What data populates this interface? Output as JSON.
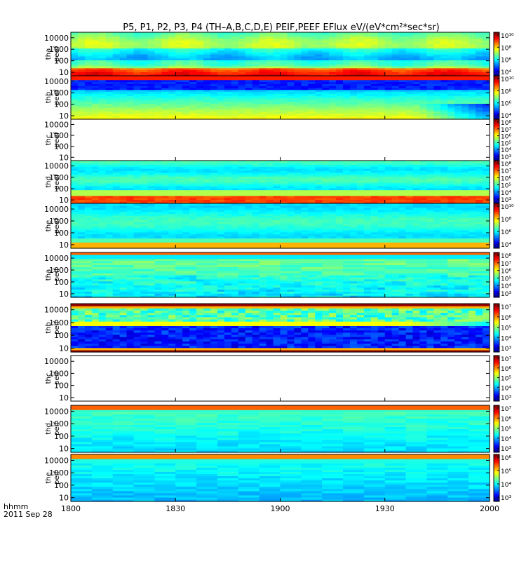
{
  "chart_data": {
    "type": "heatmap",
    "title": "P5, P1, P2, P3, P4 (TH–A,B,C,D,E) PEIF,PEEF EFlux eV/(eV*cm²*sec*sr)",
    "x_axis": {
      "ticks": [
        "1800",
        "1830",
        "1900",
        "1930",
        "2000"
      ],
      "label": "hhmm",
      "date": "2011 Sep 28"
    },
    "y_axis": {
      "scale": "log",
      "ticks": [
        "10",
        "100",
        "1000",
        "10000"
      ],
      "range": [
        5,
        30000
      ]
    },
    "panels": [
      {
        "label": [
          "tha",
          "peef"
        ],
        "cbar": [
          "10¹⁰",
          "10⁸",
          "10⁶",
          "10⁴"
        ],
        "style": "tha_e"
      },
      {
        "label": [
          "thb",
          "peef"
        ],
        "cbar": [
          "10¹⁰",
          "10⁸",
          "10⁶",
          "10⁴"
        ],
        "style": "thb_e"
      },
      {
        "label": [
          "thc",
          "peef"
        ],
        "cbar": [
          "10⁸",
          "10⁷",
          "10⁶",
          "10⁵",
          "10⁴",
          "10³"
        ],
        "style": "blank"
      },
      {
        "label": [
          "thd",
          "peef"
        ],
        "cbar": [
          "10⁸",
          "10⁷",
          "10⁶",
          "10⁵",
          "10⁴",
          "10³"
        ],
        "style": "thd_e"
      },
      {
        "label": [
          "the",
          "peef"
        ],
        "cbar": [
          "10¹⁰",
          "10⁸",
          "10⁶",
          "10⁴"
        ],
        "style": "the_e"
      },
      {
        "label": [
          "tha",
          "peif"
        ],
        "cbar": [
          "10⁸",
          "10⁷",
          "10⁶",
          "10⁵",
          "10⁴",
          "10³"
        ],
        "style": "tha_i"
      },
      {
        "label": [
          "thb",
          "peif"
        ],
        "cbar": [
          "10⁷",
          "10⁶",
          "10⁵",
          "10⁴",
          "10³"
        ],
        "style": "thb_i"
      },
      {
        "label": [
          "thc",
          "peif"
        ],
        "cbar": [
          "10⁷",
          "10⁶",
          "10⁵",
          "10⁴",
          "10³"
        ],
        "style": "blank"
      },
      {
        "label": [
          "thd",
          "peif"
        ],
        "cbar": [
          "10⁷",
          "10⁶",
          "10⁵",
          "10⁴",
          "10³"
        ],
        "style": "thd_i"
      },
      {
        "label": [
          "the",
          "peif"
        ],
        "cbar": [
          "10⁶",
          "10⁵",
          "10⁴",
          "10³"
        ],
        "style": "the_i"
      }
    ]
  }
}
